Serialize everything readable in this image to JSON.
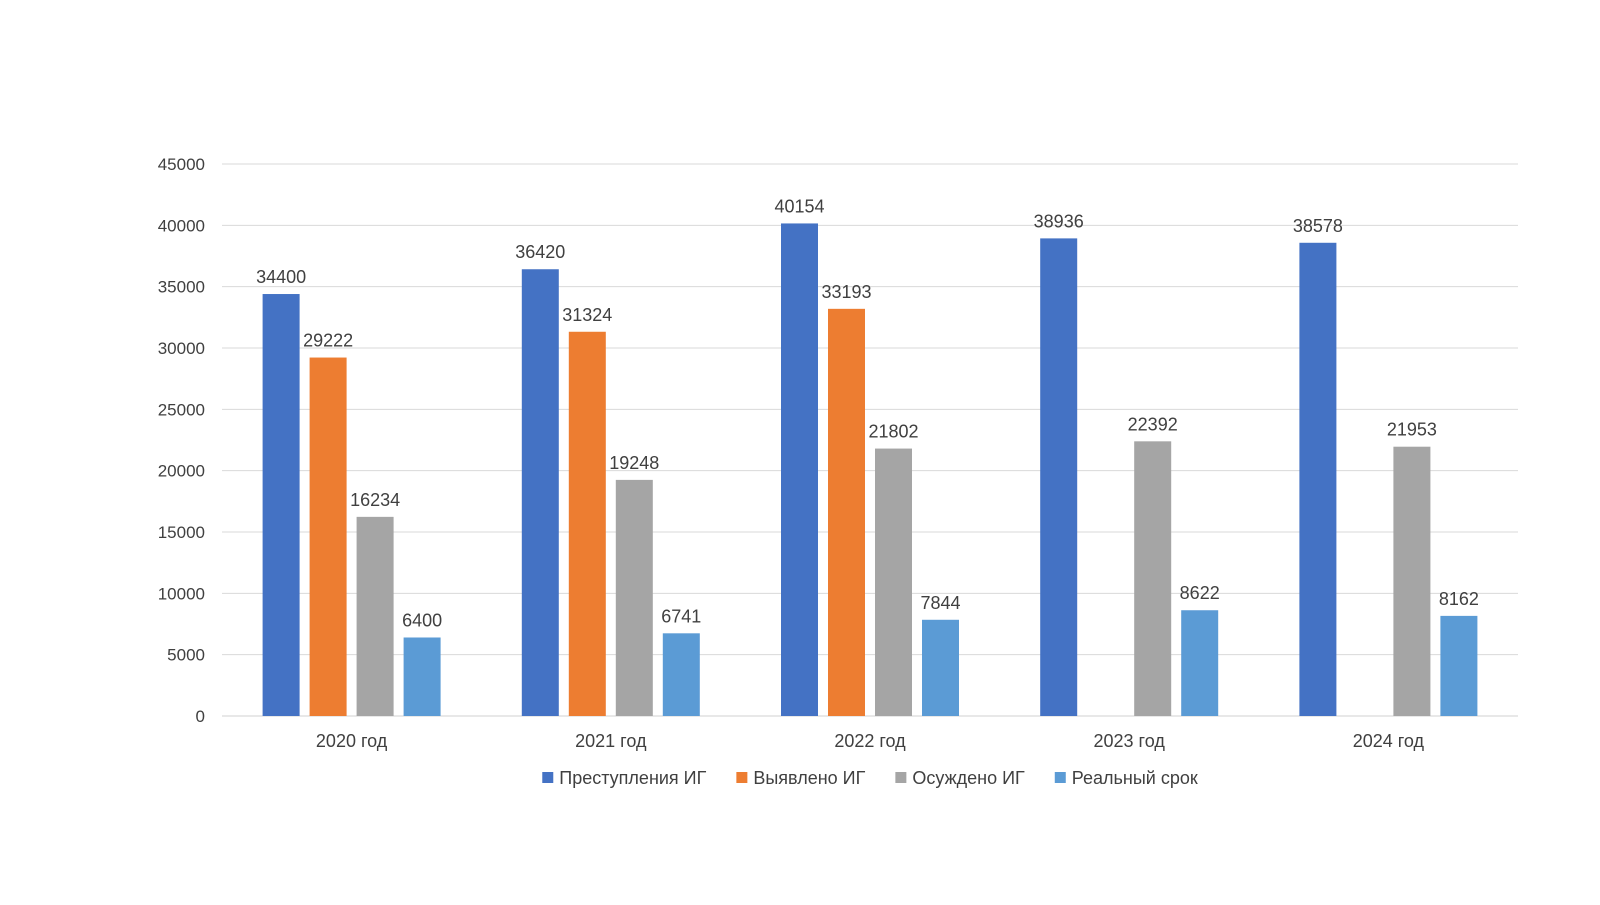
{
  "chart_data": {
    "type": "bar",
    "title": "",
    "xlabel": "",
    "ylabel": "",
    "ylim": [
      0,
      45000
    ],
    "yticks": [
      0,
      5000,
      10000,
      15000,
      20000,
      25000,
      30000,
      35000,
      40000,
      45000
    ],
    "grid": true,
    "legend_position": "bottom",
    "categories": [
      "2020 год",
      "2021 год",
      "2022 год",
      "2023 год",
      "2024 год"
    ],
    "series": [
      {
        "name": "Преступления ИГ",
        "color": "#4472C4",
        "values": [
          34400,
          36420,
          40154,
          38936,
          38578
        ]
      },
      {
        "name": "Выявлено ИГ",
        "color": "#ED7D31",
        "values": [
          29222,
          31324,
          33193,
          null,
          null
        ]
      },
      {
        "name": "Осуждено ИГ",
        "color": "#A5A5A5",
        "values": [
          16234,
          19248,
          21802,
          22392,
          21953
        ]
      },
      {
        "name": "Реальный срок",
        "color": "#5B9BD5",
        "values": [
          6400,
          6741,
          7844,
          8622,
          8162
        ]
      }
    ]
  }
}
